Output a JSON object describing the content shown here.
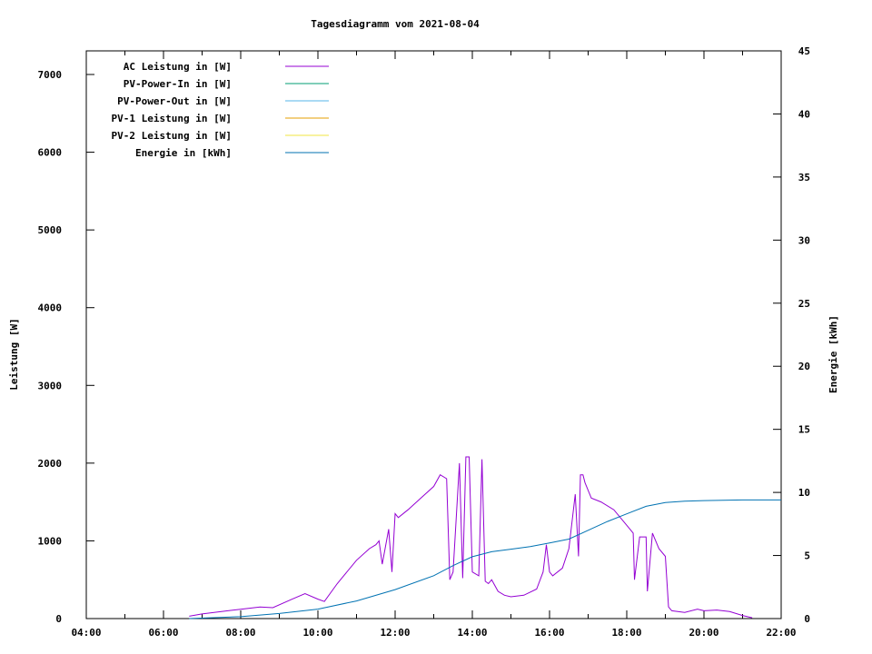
{
  "chart_data": {
    "type": "line",
    "title": "Tagesdiagramm vom 2021-08-04",
    "ylabel": "Leistung [W]",
    "y2label": "Energie in [kWh]",
    "y2label_axis": "Energie [kWh]",
    "xlim": [
      "04:00",
      "22:00"
    ],
    "ylim": [
      0,
      7300
    ],
    "y2lim": [
      0,
      45
    ],
    "x_ticks": [
      "04:00",
      "06:00",
      "08:00",
      "10:00",
      "12:00",
      "14:00",
      "16:00",
      "18:00",
      "20:00",
      "22:00"
    ],
    "y_ticks": [
      0,
      1000,
      2000,
      3000,
      4000,
      5000,
      6000,
      7000
    ],
    "y2_ticks": [
      0,
      5,
      10,
      15,
      20,
      25,
      30,
      35,
      40,
      45
    ],
    "grid": false,
    "legend_position": "top-left",
    "legend": [
      {
        "label": "AC Leistung in [W]",
        "color": "#9400d3"
      },
      {
        "label": "PV-Power-In in [W]",
        "color": "#009e73"
      },
      {
        "label": "PV-Power-Out in [W]",
        "color": "#56b4e9"
      },
      {
        "label": "PV-1 Leistung in [W]",
        "color": "#e69f00"
      },
      {
        "label": "PV-2 Leistung in [W]",
        "color": "#f0e442"
      },
      {
        "label": "Energie in [kWh]",
        "color": "#0072b2"
      }
    ],
    "series": [
      {
        "name": "AC Leistung in [W]",
        "axis": "y",
        "color": "#9400d3",
        "x": [
          "06:40",
          "07:00",
          "07:30",
          "08:00",
          "08:30",
          "08:50",
          "09:20",
          "09:40",
          "10:00",
          "10:10",
          "10:30",
          "11:00",
          "11:20",
          "11:30",
          "11:35",
          "11:40",
          "11:50",
          "11:55",
          "12:00",
          "12:05",
          "12:20",
          "12:40",
          "13:00",
          "13:10",
          "13:20",
          "13:25",
          "13:30",
          "13:40",
          "13:45",
          "13:50",
          "13:55",
          "14:00",
          "14:10",
          "14:15",
          "14:20",
          "14:25",
          "14:30",
          "14:40",
          "14:50",
          "15:00",
          "15:20",
          "15:40",
          "15:50",
          "15:55",
          "16:00",
          "16:05",
          "16:20",
          "16:30",
          "16:40",
          "16:45",
          "16:48",
          "16:52",
          "16:55",
          "17:05",
          "17:20",
          "17:40",
          "18:00",
          "18:10",
          "18:12",
          "18:20",
          "18:30",
          "18:32",
          "18:40",
          "18:50",
          "19:00",
          "19:05",
          "19:10",
          "19:30",
          "19:50",
          "20:00",
          "20:20",
          "20:40",
          "21:00",
          "21:15"
        ],
        "values": [
          30,
          60,
          90,
          120,
          150,
          140,
          250,
          320,
          250,
          220,
          450,
          750,
          900,
          950,
          1000,
          700,
          1150,
          600,
          1350,
          1300,
          1400,
          1550,
          1700,
          1850,
          1800,
          500,
          600,
          2000,
          520,
          2080,
          2080,
          600,
          550,
          2050,
          480,
          450,
          500,
          350,
          300,
          280,
          300,
          380,
          600,
          950,
          600,
          550,
          650,
          900,
          1600,
          800,
          1850,
          1850,
          1750,
          1550,
          1500,
          1400,
          1200,
          1100,
          500,
          1050,
          1050,
          350,
          1100,
          900,
          800,
          150,
          100,
          80,
          120,
          100,
          110,
          90,
          40,
          10
        ]
      },
      {
        "name": "Energie in [kWh]",
        "axis": "y2",
        "color": "#0072b2",
        "x": [
          "06:40",
          "08:00",
          "09:00",
          "10:00",
          "11:00",
          "12:00",
          "13:00",
          "13:30",
          "14:00",
          "14:30",
          "15:00",
          "15:30",
          "16:00",
          "16:30",
          "17:00",
          "17:30",
          "18:00",
          "18:30",
          "19:00",
          "19:30",
          "20:00",
          "21:00",
          "22:00"
        ],
        "values": [
          0,
          0.15,
          0.4,
          0.75,
          1.4,
          2.3,
          3.4,
          4.2,
          4.9,
          5.3,
          5.5,
          5.7,
          6.0,
          6.3,
          7.0,
          7.7,
          8.3,
          8.9,
          9.2,
          9.3,
          9.35,
          9.4,
          9.4
        ]
      }
    ]
  }
}
